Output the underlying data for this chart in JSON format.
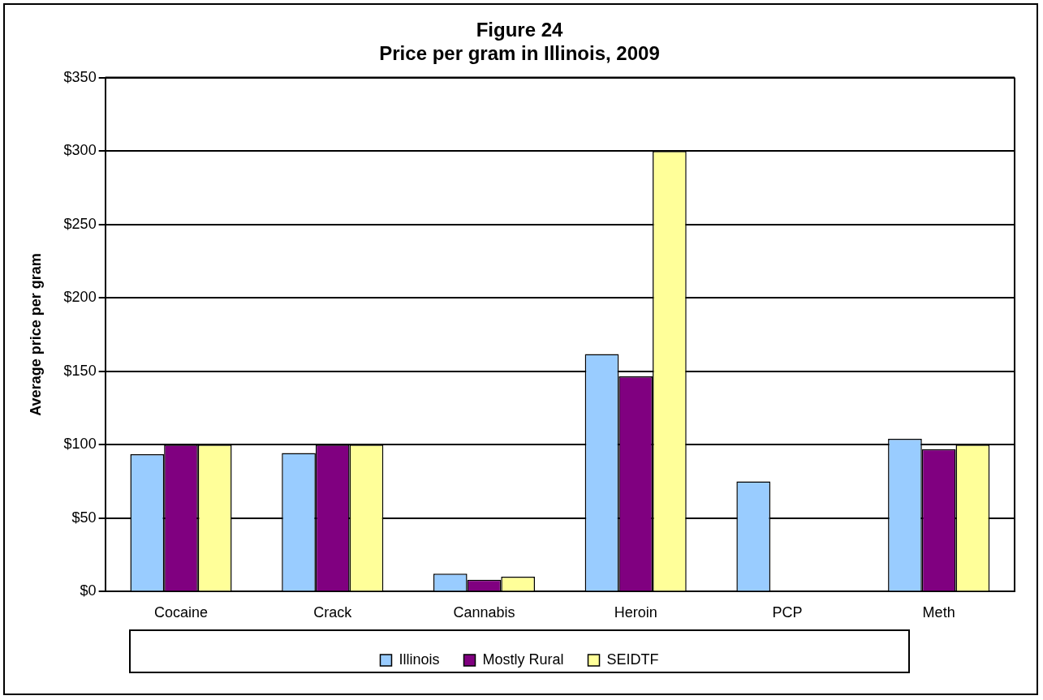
{
  "chart_data": {
    "type": "bar",
    "title": [
      "Figure 24",
      "Price per gram in Illinois, 2009"
    ],
    "ylabel": "Average price per gram",
    "categories": [
      "Cocaine",
      "Crack",
      "Cannabis",
      "Heroin",
      "PCP",
      "Meth"
    ],
    "series": [
      {
        "name": "Illinois",
        "color": "#99ccff",
        "values": [
          93.6,
          94.4,
          12.3,
          161.8,
          75,
          104
        ]
      },
      {
        "name": "Mostly Rural",
        "color": "#800080",
        "values": [
          100,
          100,
          8.1,
          146.6,
          null,
          97
        ]
      },
      {
        "name": "SEIDTF",
        "color": "#ffff99",
        "values": [
          100,
          100,
          10.2,
          300,
          null,
          100
        ]
      }
    ],
    "ylim": [
      0,
      350
    ],
    "yticks": [
      {
        "value": 0,
        "label": "$0"
      },
      {
        "value": 50,
        "label": "$50"
      },
      {
        "value": 100,
        "label": "$100"
      },
      {
        "value": 150,
        "label": "$150"
      },
      {
        "value": 200,
        "label": "$200"
      },
      {
        "value": 250,
        "label": "$250"
      },
      {
        "value": 300,
        "label": "$300"
      },
      {
        "value": 350,
        "label": "$350"
      }
    ],
    "grid": "y",
    "legend": "bottom"
  }
}
